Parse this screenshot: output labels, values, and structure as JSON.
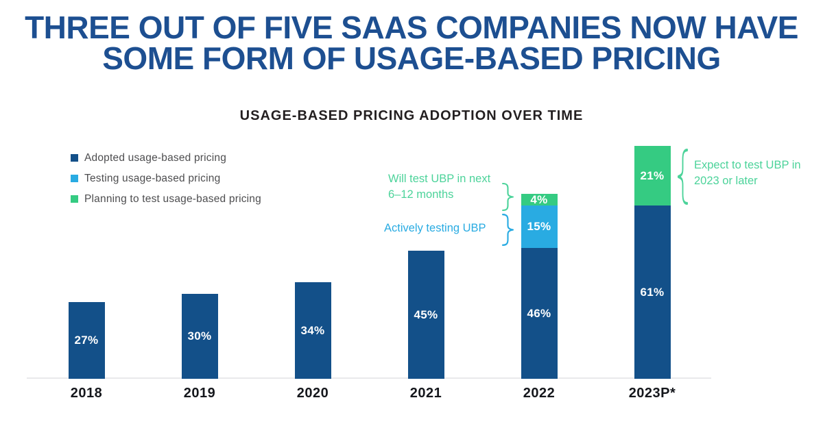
{
  "headline": {
    "line1": "THREE OUT OF FIVE SAAS COMPANIES NOW HAVE",
    "line2": "SOME FORM OF USAGE-BASED PRICING"
  },
  "chart_data": {
    "type": "bar",
    "stacked": true,
    "title": "USAGE-BASED PRICING ADOPTION OVER TIME",
    "categories": [
      "2018",
      "2019",
      "2020",
      "2021",
      "2022",
      "2023P*"
    ],
    "series": [
      {
        "name": "Adopted usage-based pricing",
        "color": "#135089",
        "values": [
          27,
          30,
          34,
          45,
          46,
          61
        ]
      },
      {
        "name": "Testing usage-based pricing",
        "color": "#29ABE2",
        "values": [
          0,
          0,
          0,
          0,
          15,
          0
        ]
      },
      {
        "name": "Planning to test usage-based pricing",
        "color": "#35CB82",
        "values": [
          0,
          0,
          0,
          0,
          4,
          21
        ]
      }
    ],
    "value_label_format": "{value}%",
    "ylim": [
      0,
      100
    ],
    "grid": false,
    "legend_position": "top-left",
    "annotations": [
      {
        "text_lines": [
          "Will test UBP in next",
          "6–12 months"
        ],
        "color": "#4CD39A",
        "target": "2022 planning segment (4%)"
      },
      {
        "text_lines": [
          "Actively testing UBP"
        ],
        "color": "#29ABE2",
        "target": "2022 testing segment (15%)"
      },
      {
        "text_lines": [
          "Expect to test UBP in",
          "2023 or later"
        ],
        "color": "#4CD39A",
        "target": "2023P* planning segment (21%)"
      }
    ]
  }
}
